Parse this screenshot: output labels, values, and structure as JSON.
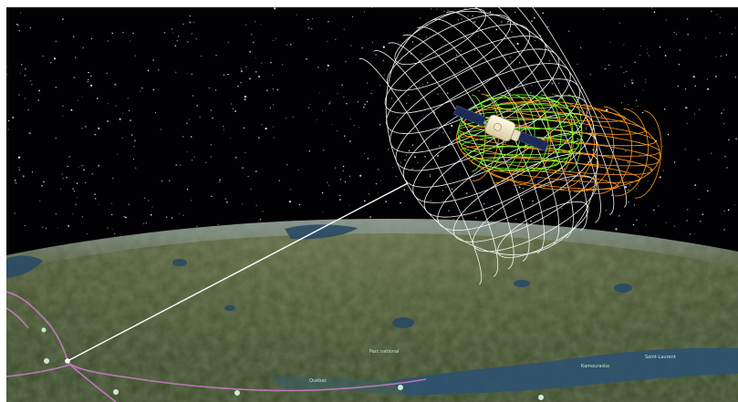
{
  "viewport": {
    "view": "3D globe with satellite sensor visualization",
    "colors": {
      "space": "#020204",
      "sensor_cone": "#ffffff",
      "orbit_green": "#7dff2a",
      "orbit_orange": "#ff9a1a",
      "ground_track": "#c97cc6",
      "water": "#2a4a63",
      "land": "#4f5a37"
    },
    "icons": {
      "satellite": "satellite-icon",
      "ground_station": "ground-station-icon",
      "city_markers": "map-pin-icon"
    }
  }
}
